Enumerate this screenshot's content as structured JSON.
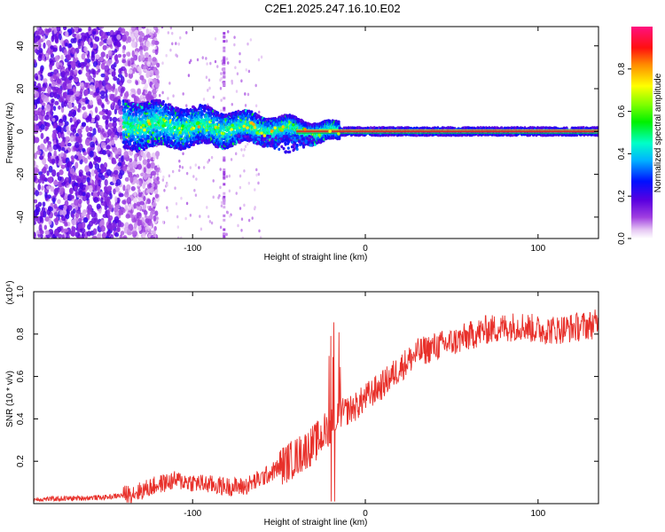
{
  "title": "C2E1.2025.247.16.10.E02",
  "colors": {
    "snr_line": "#e8302a",
    "ridge": "#e0301f",
    "frame": "#000000"
  },
  "chart_data": [
    {
      "type": "heatmap",
      "name": "spectrogram",
      "xlabel": "Height of straight line (km)",
      "ylabel": "Frequency (Hz)",
      "xlim": [
        -192,
        135
      ],
      "ylim": [
        -50,
        49
      ],
      "xticks": [
        -100,
        0,
        100
      ],
      "xtick_labels": [
        "-100",
        "0",
        "100"
      ],
      "yticks": [
        -40,
        -20,
        0,
        20,
        40
      ],
      "ytick_labels": [
        "-40",
        "-20",
        "0",
        "20",
        "40"
      ],
      "colorbar": {
        "label": "Normalized spectral amplitude",
        "range": [
          0,
          1
        ],
        "ticks": [
          0,
          0.2,
          0.4,
          0.6,
          0.8
        ],
        "tick_labels": [
          "0.0",
          "0.2",
          "0.4",
          "0.6",
          "0.8"
        ],
        "colormap": "rainbow (white-violet-blue-cyan-green-yellow-red-magenta)"
      },
      "features": {
        "noise_region_x": [
          -192,
          -130
        ],
        "band_start_x": -140,
        "band_converges_to_zero_at_x": -15,
        "ridge_freq": 0,
        "grid": false
      }
    },
    {
      "type": "line",
      "name": "snr",
      "xlabel": "Height of straight line (km)",
      "ylabel": "SNR (10 * v/v)",
      "y_multiplier": "(x10⁴)",
      "xlim": [
        -192,
        135
      ],
      "ylim": [
        0,
        1.0
      ],
      "xticks": [
        -100,
        0,
        100
      ],
      "xtick_labels": [
        "-100",
        "0",
        "100"
      ],
      "yticks": [
        0.2,
        0.4,
        0.6,
        0.8,
        1.0
      ],
      "ytick_labels": [
        "0.2",
        "0.4",
        "0.6",
        "0.8",
        "1.0"
      ],
      "series": [
        {
          "name": "SNR",
          "x": [
            -192,
            -170,
            -150,
            -140,
            -130,
            -120,
            -110,
            -100,
            -90,
            -80,
            -70,
            -60,
            -50,
            -40,
            -35,
            -30,
            -25,
            -20,
            -15,
            -10,
            -5,
            0,
            10,
            20,
            30,
            40,
            50,
            60,
            70,
            80,
            90,
            100,
            110,
            120,
            135
          ],
          "y": [
            0.02,
            0.025,
            0.03,
            0.04,
            0.06,
            0.09,
            0.11,
            0.1,
            0.09,
            0.08,
            0.08,
            0.12,
            0.17,
            0.22,
            0.25,
            0.28,
            0.32,
            0.38,
            0.42,
            0.44,
            0.46,
            0.5,
            0.56,
            0.64,
            0.71,
            0.74,
            0.76,
            0.79,
            0.82,
            0.83,
            0.84,
            0.82,
            0.82,
            0.83,
            0.85
          ]
        }
      ],
      "grid": false
    }
  ]
}
